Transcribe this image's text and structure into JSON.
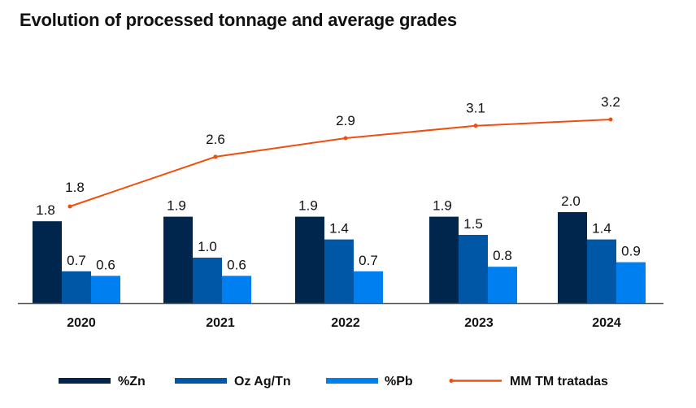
{
  "chart_data": {
    "type": "bar",
    "title": "Evolution of processed tonnage and average grades",
    "xlabel": "",
    "ylabel": "",
    "grid": false,
    "legend_position": "bottom",
    "categories": [
      "2020",
      "2021",
      "2022",
      "2023",
      "2024"
    ],
    "series": [
      {
        "name": "%Zn",
        "type": "bar",
        "color": "#00264D",
        "values": [
          1.8,
          1.9,
          1.9,
          1.9,
          2.0
        ],
        "labels": [
          "1.8",
          "1.9",
          "1.9",
          "1.9",
          "2.0"
        ]
      },
      {
        "name": "Oz Ag/Tn",
        "type": "bar",
        "color": "#0057A6",
        "values": [
          0.7,
          1.0,
          1.4,
          1.5,
          1.4
        ],
        "labels": [
          "0.7",
          "1.0",
          "1.4",
          "1.5",
          "1.4"
        ]
      },
      {
        "name": "%Pb",
        "type": "bar",
        "color": "#0080F0",
        "values": [
          0.6,
          0.6,
          0.7,
          0.8,
          0.9
        ],
        "labels": [
          "0.6",
          "0.6",
          "0.7",
          "0.8",
          "0.9"
        ]
      },
      {
        "name": "MM TM tratadas",
        "type": "line",
        "axis": "secondary",
        "color": "#F04E0E",
        "values": [
          1.8,
          2.6,
          2.9,
          3.1,
          3.2
        ],
        "labels": [
          "1.8",
          "2.6",
          "2.9",
          "3.1",
          "3.2"
        ]
      }
    ],
    "ylim": [
      0,
      2.0
    ],
    "ylim_secondary": [
      1.8,
      3.2
    ]
  }
}
